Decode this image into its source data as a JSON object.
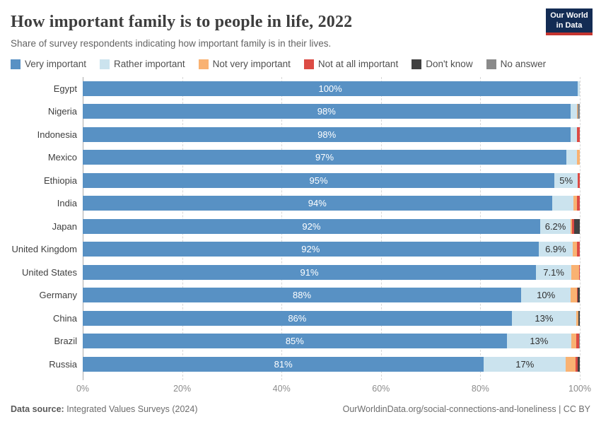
{
  "header": {
    "title": "How important family is to people in life, 2022",
    "subtitle": "Share of survey respondents indicating how important family is in their lives.",
    "logo": {
      "line1": "Our World",
      "line2": "in Data"
    }
  },
  "colors": {
    "very_important": "#5891c4",
    "rather_important": "#cbe3ee",
    "not_very_important": "#f9b272",
    "not_at_all_important": "#dc4b44",
    "dont_know": "#414141",
    "no_answer": "#8a8a8a",
    "logo_navy": "#132c54",
    "logo_red": "#c5352f"
  },
  "chart_data": {
    "type": "bar",
    "stacked": true,
    "orientation": "horizontal",
    "title": "How important family is to people in life, 2022",
    "xlabel": "",
    "ylabel": "",
    "xlim": [
      0,
      100
    ],
    "x_ticks": [
      "0%",
      "20%",
      "40%",
      "60%",
      "80%",
      "100%"
    ],
    "grid": "vertical-dashed",
    "legend_position": "top",
    "categories": [
      "Egypt",
      "Nigeria",
      "Indonesia",
      "Mexico",
      "Ethiopia",
      "India",
      "Japan",
      "United Kingdom",
      "United States",
      "Germany",
      "China",
      "Brazil",
      "Russia"
    ],
    "series": [
      {
        "name": "Very important",
        "key": "very",
        "color": "#5891c4",
        "values": [
          99.6,
          98.1,
          98.2,
          97.3,
          94.9,
          94.4,
          92.0,
          91.7,
          91.2,
          88.2,
          86.3,
          85.3,
          80.7
        ],
        "labels": [
          "100%",
          "98%",
          "98%",
          "97%",
          "95%",
          "94%",
          "92%",
          "92%",
          "91%",
          "88%",
          "86%",
          "85%",
          "81%"
        ]
      },
      {
        "name": "Rather important",
        "key": "rather",
        "color": "#cbe3ee",
        "values": [
          0.4,
          1.3,
          1.2,
          2.1,
          4.7,
          4.3,
          6.2,
          6.9,
          7.1,
          10.0,
          13.0,
          13.0,
          16.5
        ],
        "labels": [
          null,
          null,
          null,
          null,
          "5%",
          null,
          "6.2%",
          "6.9%",
          "7.1%",
          "10%",
          "13%",
          "13%",
          "17%"
        ]
      },
      {
        "name": "Not very important",
        "key": "not-very",
        "color": "#f9b272",
        "values": [
          0,
          0.2,
          0,
          0.6,
          0,
          0.7,
          0.3,
          0.9,
          1.5,
          1.2,
          0.4,
          1.0,
          1.9
        ],
        "labels": null
      },
      {
        "name": "Not at all important",
        "key": "not-at-all",
        "color": "#dc4b44",
        "values": [
          0,
          0,
          0.6,
          0,
          0.4,
          0.6,
          0.3,
          0.5,
          0.2,
          0.2,
          0,
          0.5,
          0.5
        ],
        "labels": null
      },
      {
        "name": "Don't know",
        "key": "dont-know",
        "color": "#414141",
        "values": [
          0,
          0,
          0,
          0,
          0,
          0,
          1.2,
          0,
          0,
          0.4,
          0.3,
          0,
          0.4
        ],
        "labels": null
      },
      {
        "name": "No answer",
        "key": "no-answer",
        "color": "#8a8a8a",
        "values": [
          0,
          0.4,
          0,
          0,
          0,
          0,
          0,
          0,
          0,
          0,
          0,
          0.2,
          0
        ],
        "labels": null
      }
    ]
  },
  "footer": {
    "source_label": "Data source:",
    "source_text": " Integrated Values Surveys (2024)",
    "link_text": "OurWorldinData.org/social-connections-and-loneliness | CC BY"
  }
}
